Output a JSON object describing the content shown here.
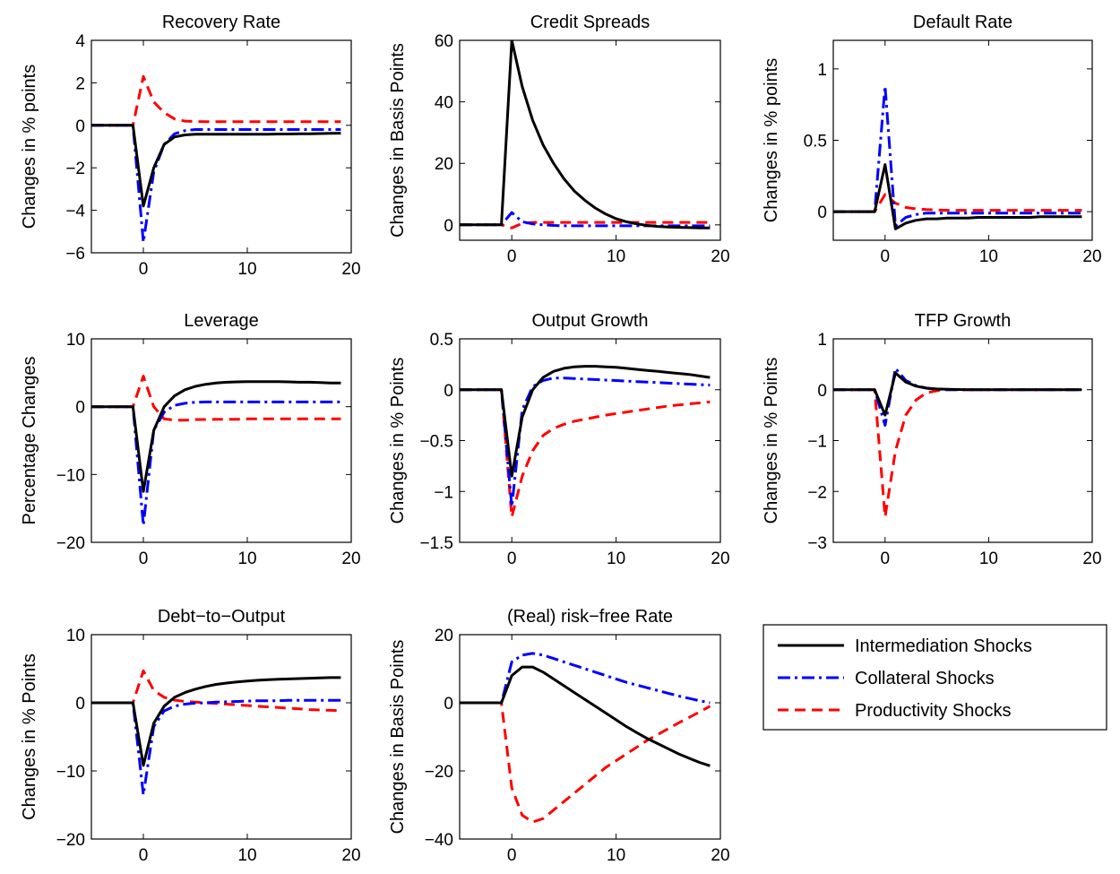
{
  "chart_data": [
    {
      "type": "line",
      "title": "Recovery Rate",
      "ylabel": "Changes in % points",
      "xlim": [
        -5,
        20
      ],
      "ylim": [
        -6,
        4
      ],
      "xticks": [
        0,
        10,
        20
      ],
      "yticks": [
        -6,
        -4,
        -2,
        0,
        2,
        4
      ],
      "ytick_labels": [
        "−6",
        "−4",
        "−2",
        "0",
        "2",
        "4"
      ],
      "x": [
        -5,
        -4,
        -3,
        -2,
        -1,
        0,
        1,
        2,
        3,
        4,
        5,
        6,
        7,
        8,
        9,
        10,
        11,
        12,
        13,
        14,
        15,
        16,
        17,
        18,
        19
      ],
      "series": [
        {
          "name": "Intermediation Shocks",
          "values": [
            0,
            0,
            0,
            0,
            0,
            -3.8,
            -2.0,
            -0.9,
            -0.55,
            -0.45,
            -0.42,
            -0.42,
            -0.42,
            -0.42,
            -0.42,
            -0.42,
            -0.42,
            -0.42,
            -0.41,
            -0.41,
            -0.4,
            -0.4,
            -0.39,
            -0.38,
            -0.37
          ]
        },
        {
          "name": "Collateral Shocks",
          "values": [
            0,
            0,
            0,
            0,
            0,
            -5.5,
            -2.2,
            -0.9,
            -0.4,
            -0.25,
            -0.2,
            -0.2,
            -0.2,
            -0.2,
            -0.2,
            -0.2,
            -0.2,
            -0.2,
            -0.2,
            -0.2,
            -0.2,
            -0.2,
            -0.2,
            -0.2,
            -0.2
          ]
        },
        {
          "name": "Productivity Shocks",
          "values": [
            0,
            0,
            0,
            0,
            0,
            2.3,
            1.1,
            0.6,
            0.3,
            0.2,
            0.18,
            0.17,
            0.17,
            0.17,
            0.17,
            0.17,
            0.17,
            0.17,
            0.17,
            0.17,
            0.17,
            0.17,
            0.17,
            0.17,
            0.17
          ]
        }
      ]
    },
    {
      "type": "line",
      "title": "Credit Spreads",
      "ylabel": "Changes in Basis Points",
      "xlim": [
        -5,
        20
      ],
      "ylim": [
        -5,
        60
      ],
      "xticks": [
        0,
        10,
        20
      ],
      "yticks": [
        0,
        20,
        40,
        60
      ],
      "ytick_labels": [
        "0",
        "20",
        "40",
        "60"
      ],
      "x": [
        -5,
        -4,
        -3,
        -2,
        -1,
        0,
        1,
        2,
        3,
        4,
        5,
        6,
        7,
        8,
        9,
        10,
        11,
        12,
        13,
        14,
        15,
        16,
        17,
        18,
        19
      ],
      "series": [
        {
          "name": "Intermediation Shocks",
          "values": [
            0,
            0,
            0,
            0,
            0,
            60,
            45,
            34,
            26,
            20,
            15,
            11,
            8,
            5.5,
            3.5,
            2,
            1,
            0.3,
            -0.2,
            -0.5,
            -0.7,
            -0.8,
            -0.9,
            -1,
            -1
          ]
        },
        {
          "name": "Collateral Shocks",
          "values": [
            0,
            0,
            0,
            0,
            0,
            4,
            1,
            0.3,
            0,
            -0.2,
            -0.3,
            -0.3,
            -0.3,
            -0.3,
            -0.3,
            -0.3,
            -0.3,
            -0.3,
            -0.3,
            -0.3,
            -0.3,
            -0.3,
            -0.3,
            -0.3,
            -0.3
          ]
        },
        {
          "name": "Productivity Shocks",
          "values": [
            0,
            0,
            0,
            0,
            0,
            -1,
            0.5,
            0.8,
            0.8,
            0.8,
            0.8,
            0.8,
            0.8,
            0.8,
            0.8,
            0.8,
            0.8,
            0.8,
            0.8,
            0.8,
            0.8,
            0.8,
            0.8,
            0.8,
            0.8
          ]
        }
      ]
    },
    {
      "type": "line",
      "title": "Default Rate",
      "ylabel": "Changes in % points",
      "xlim": [
        -5,
        20
      ],
      "ylim": [
        -0.2,
        1.2
      ],
      "xticks": [
        0,
        10,
        20
      ],
      "yticks": [
        0,
        0.5,
        1
      ],
      "ytick_labels": [
        "0",
        "0.5",
        "1"
      ],
      "x": [
        -5,
        -4,
        -3,
        -2,
        -1,
        0,
        1,
        2,
        3,
        4,
        5,
        6,
        7,
        8,
        9,
        10,
        11,
        12,
        13,
        14,
        15,
        16,
        17,
        18,
        19
      ],
      "series": [
        {
          "name": "Intermediation Shocks",
          "values": [
            0,
            0,
            0,
            0,
            0,
            0.33,
            -0.12,
            -0.08,
            -0.06,
            -0.05,
            -0.05,
            -0.045,
            -0.045,
            -0.045,
            -0.04,
            -0.04,
            -0.04,
            -0.04,
            -0.04,
            -0.04,
            -0.035,
            -0.035,
            -0.035,
            -0.035,
            -0.035
          ]
        },
        {
          "name": "Collateral Shocks",
          "values": [
            0,
            0,
            0,
            0,
            0,
            0.88,
            -0.1,
            -0.04,
            -0.02,
            -0.01,
            -0.01,
            -0.01,
            -0.01,
            -0.01,
            -0.01,
            -0.01,
            -0.01,
            -0.01,
            -0.01,
            -0.01,
            -0.01,
            -0.01,
            -0.01,
            -0.01,
            -0.01
          ]
        },
        {
          "name": "Productivity Shocks",
          "values": [
            0,
            0,
            0,
            0,
            0,
            0.12,
            0.06,
            0.03,
            0.02,
            0.015,
            0.012,
            0.01,
            0.01,
            0.01,
            0.01,
            0.01,
            0.01,
            0.01,
            0.01,
            0.01,
            0.01,
            0.01,
            0.01,
            0.01,
            0.01
          ]
        }
      ]
    },
    {
      "type": "line",
      "title": "Leverage",
      "ylabel": "Percentage Changes",
      "xlim": [
        -5,
        20
      ],
      "ylim": [
        -20,
        10
      ],
      "xticks": [
        0,
        10,
        20
      ],
      "yticks": [
        -20,
        -10,
        0,
        10
      ],
      "ytick_labels": [
        "−20",
        "−10",
        "0",
        "10"
      ],
      "x": [
        -5,
        -4,
        -3,
        -2,
        -1,
        0,
        1,
        2,
        3,
        4,
        5,
        6,
        7,
        8,
        9,
        10,
        11,
        12,
        13,
        14,
        15,
        16,
        17,
        18,
        19
      ],
      "series": [
        {
          "name": "Intermediation Shocks",
          "values": [
            0,
            0,
            0,
            0,
            0,
            -12.5,
            -3.5,
            0,
            1.6,
            2.5,
            3,
            3.3,
            3.5,
            3.6,
            3.65,
            3.7,
            3.7,
            3.7,
            3.7,
            3.65,
            3.6,
            3.6,
            3.55,
            3.5,
            3.5
          ]
        },
        {
          "name": "Collateral Shocks",
          "values": [
            0,
            0,
            0,
            0,
            0,
            -17.5,
            -3.5,
            -0.8,
            0.2,
            0.5,
            0.65,
            0.7,
            0.7,
            0.7,
            0.7,
            0.7,
            0.7,
            0.7,
            0.7,
            0.7,
            0.7,
            0.7,
            0.7,
            0.7,
            0.7
          ]
        },
        {
          "name": "Productivity Shocks",
          "values": [
            0,
            0,
            0,
            0,
            0,
            4.5,
            0,
            -1.8,
            -2,
            -2,
            -1.9,
            -1.9,
            -1.85,
            -1.85,
            -1.85,
            -1.8,
            -1.8,
            -1.8,
            -1.8,
            -1.8,
            -1.8,
            -1.8,
            -1.8,
            -1.8,
            -1.8
          ]
        }
      ]
    },
    {
      "type": "line",
      "title": "Output Growth",
      "ylabel": "Changes in % Points",
      "xlim": [
        -5,
        20
      ],
      "ylim": [
        -1.5,
        0.5
      ],
      "xticks": [
        0,
        10,
        20
      ],
      "yticks": [
        -1.5,
        -1,
        -0.5,
        0,
        0.5
      ],
      "ytick_labels": [
        "−1.5",
        "−1",
        "−0.5",
        "0",
        "0.5"
      ],
      "x": [
        -5,
        -4,
        -3,
        -2,
        -1,
        0,
        1,
        2,
        3,
        4,
        5,
        6,
        7,
        8,
        9,
        10,
        11,
        12,
        13,
        14,
        15,
        16,
        17,
        18,
        19
      ],
      "series": [
        {
          "name": "Intermediation Shocks",
          "values": [
            0,
            0,
            0,
            0,
            0,
            -0.85,
            -0.27,
            0,
            0.12,
            0.18,
            0.21,
            0.225,
            0.23,
            0.23,
            0.225,
            0.22,
            0.21,
            0.2,
            0.19,
            0.18,
            0.17,
            0.16,
            0.15,
            0.135,
            0.12
          ]
        },
        {
          "name": "Collateral Shocks",
          "values": [
            0,
            0,
            0,
            0,
            0,
            -1.15,
            -0.2,
            0.03,
            0.09,
            0.115,
            0.115,
            0.11,
            0.105,
            0.1,
            0.095,
            0.09,
            0.085,
            0.08,
            0.075,
            0.07,
            0.065,
            0.06,
            0.055,
            0.05,
            0.045
          ]
        },
        {
          "name": "Productivity Shocks",
          "values": [
            0,
            0,
            0,
            0,
            0,
            -1.25,
            -0.85,
            -0.6,
            -0.45,
            -0.38,
            -0.34,
            -0.31,
            -0.29,
            -0.27,
            -0.25,
            -0.235,
            -0.22,
            -0.205,
            -0.19,
            -0.175,
            -0.16,
            -0.15,
            -0.14,
            -0.13,
            -0.12
          ]
        }
      ]
    },
    {
      "type": "line",
      "title": "TFP Growth",
      "ylabel": "Changes in % Points",
      "xlim": [
        -5,
        20
      ],
      "ylim": [
        -3,
        1
      ],
      "xticks": [
        0,
        10,
        20
      ],
      "yticks": [
        -3,
        -2,
        -1,
        0,
        1
      ],
      "ytick_labels": [
        "−3",
        "−2",
        "−1",
        "0",
        "1"
      ],
      "x": [
        -5,
        -4,
        -3,
        -2,
        -1,
        0,
        1,
        2,
        3,
        4,
        5,
        6,
        7,
        8,
        9,
        10,
        11,
        12,
        13,
        14,
        15,
        16,
        17,
        18,
        19
      ],
      "series": [
        {
          "name": "Intermediation Shocks",
          "values": [
            0,
            0,
            0,
            0,
            0,
            -0.5,
            0.33,
            0.15,
            0.07,
            0.03,
            0.015,
            0.01,
            0.005,
            0,
            0,
            0,
            0,
            0,
            0,
            0,
            0,
            0,
            0,
            0,
            0
          ]
        },
        {
          "name": "Collateral Shocks",
          "values": [
            0,
            0,
            0,
            0,
            0,
            -0.7,
            0.42,
            0.18,
            0.08,
            0.03,
            0.01,
            0,
            0,
            0,
            0,
            0,
            0,
            0,
            0,
            0,
            0,
            0,
            0,
            0,
            0
          ]
        },
        {
          "name": "Productivity Shocks",
          "values": [
            0,
            0,
            0,
            0,
            0,
            -2.5,
            -1.2,
            -0.5,
            -0.2,
            -0.06,
            -0.02,
            0,
            0,
            0,
            0,
            0,
            0,
            0,
            0,
            0,
            0,
            0,
            0,
            0,
            0
          ]
        }
      ]
    },
    {
      "type": "line",
      "title": "Debt−to−Output",
      "ylabel": "Changes in % Points",
      "xlim": [
        -5,
        20
      ],
      "ylim": [
        -20,
        10
      ],
      "xticks": [
        0,
        10,
        20
      ],
      "yticks": [
        -20,
        -10,
        0,
        10
      ],
      "ytick_labels": [
        "−20",
        "−10",
        "0",
        "10"
      ],
      "x": [
        -5,
        -4,
        -3,
        -2,
        -1,
        0,
        1,
        2,
        3,
        4,
        5,
        6,
        7,
        8,
        9,
        10,
        11,
        12,
        13,
        14,
        15,
        16,
        17,
        18,
        19
      ],
      "series": [
        {
          "name": "Intermediation Shocks",
          "values": [
            0,
            0,
            0,
            0,
            0,
            -9.2,
            -3,
            -0.5,
            0.8,
            1.5,
            2,
            2.4,
            2.7,
            2.9,
            3.05,
            3.2,
            3.3,
            3.4,
            3.45,
            3.5,
            3.55,
            3.6,
            3.65,
            3.7,
            3.7
          ]
        },
        {
          "name": "Collateral Shocks",
          "values": [
            0,
            0,
            0,
            0,
            0,
            -13.5,
            -3.5,
            -1.2,
            -0.5,
            -0.2,
            -0.05,
            0,
            0.1,
            0.15,
            0.2,
            0.25,
            0.3,
            0.3,
            0.3,
            0.35,
            0.35,
            0.35,
            0.35,
            0.35,
            0.35
          ]
        },
        {
          "name": "Productivity Shocks",
          "values": [
            0,
            0,
            0,
            0,
            0,
            4.7,
            1.8,
            0.8,
            0.4,
            0.2,
            0.1,
            0,
            -0.1,
            -0.2,
            -0.3,
            -0.4,
            -0.5,
            -0.6,
            -0.7,
            -0.8,
            -0.9,
            -1,
            -1.05,
            -1.1,
            -1.15
          ]
        }
      ]
    },
    {
      "type": "line",
      "title": "(Real) risk−free Rate",
      "ylabel": "Changes in Basis Points",
      "xlim": [
        -5,
        20
      ],
      "ylim": [
        -40,
        20
      ],
      "xticks": [
        0,
        10,
        20
      ],
      "yticks": [
        -40,
        -20,
        0,
        20
      ],
      "ytick_labels": [
        "−40",
        "−20",
        "0",
        "20"
      ],
      "x": [
        -5,
        -4,
        -3,
        -2,
        -1,
        0,
        1,
        2,
        3,
        4,
        5,
        6,
        7,
        8,
        9,
        10,
        11,
        12,
        13,
        14,
        15,
        16,
        17,
        18,
        19
      ],
      "series": [
        {
          "name": "Intermediation Shocks",
          "values": [
            0,
            0,
            0,
            0,
            0,
            8,
            10.5,
            10.5,
            9,
            7,
            5,
            3,
            1,
            -1,
            -3,
            -5,
            -7,
            -8.8,
            -10.5,
            -12,
            -13.5,
            -15,
            -16.3,
            -17.5,
            -18.5
          ]
        },
        {
          "name": "Collateral Shocks",
          "values": [
            0,
            0,
            0,
            0,
            0,
            12,
            14,
            14.5,
            14,
            13,
            12,
            11,
            10,
            9,
            8,
            7,
            6,
            5.2,
            4.4,
            3.6,
            2.8,
            2,
            1.3,
            0.6,
            0
          ]
        },
        {
          "name": "Productivity Shocks",
          "values": [
            0,
            0,
            0,
            0,
            0,
            -25,
            -33,
            -35,
            -34,
            -31.5,
            -29,
            -26.5,
            -24,
            -21.5,
            -19,
            -17,
            -15,
            -13,
            -11,
            -9.3,
            -7.6,
            -5.9,
            -4.3,
            -2.7,
            -1
          ]
        }
      ]
    }
  ],
  "legend": {
    "entries": [
      {
        "label": "Intermediation Shocks",
        "color": "#000000",
        "style": "solid"
      },
      {
        "label": "Collateral Shocks",
        "color": "#0000ff",
        "style": "dashdot"
      },
      {
        "label": "Productivity Shocks",
        "color": "#ff0000",
        "style": "dashed"
      }
    ]
  },
  "series_colors": {
    "Intermediation Shocks": "#000000",
    "Collateral Shocks": "#0000ff",
    "Productivity Shocks": "#ff0000"
  }
}
